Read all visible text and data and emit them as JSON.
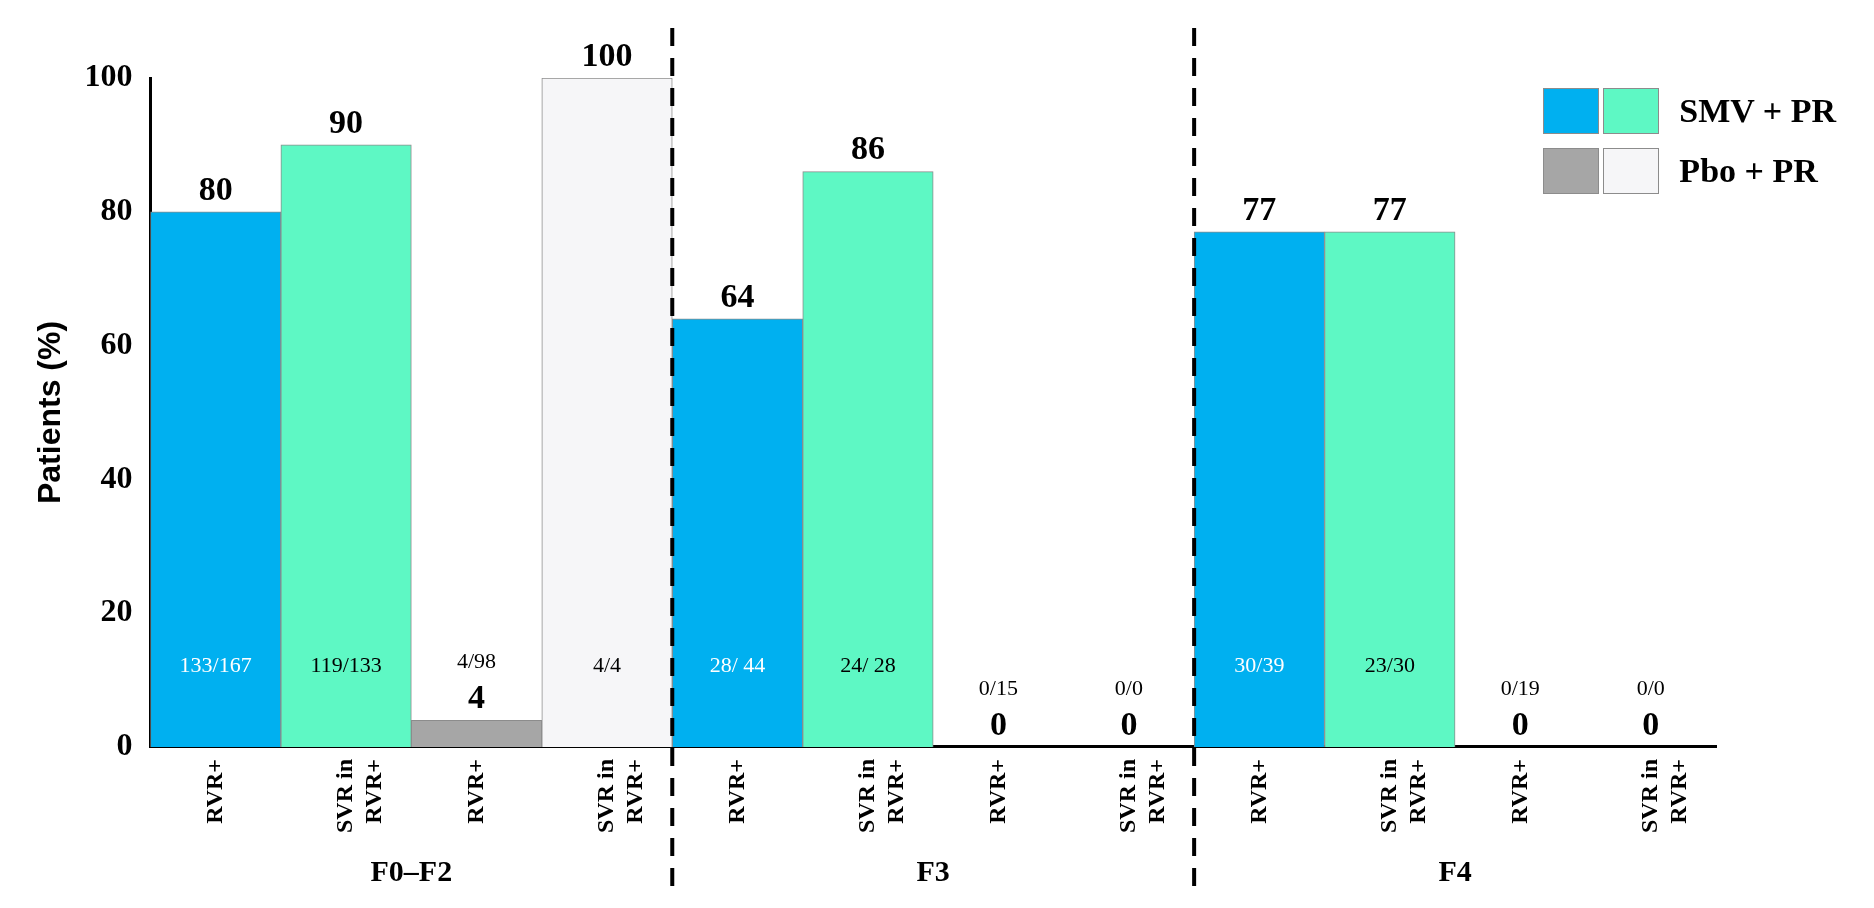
{
  "chart_data": {
    "type": "bar",
    "ylabel": "Patients (%)",
    "categories": [
      "RVR+",
      "SVR in RVR+",
      "RVR+",
      "SVR in RVR+",
      "RVR+",
      "SVR in RVR+",
      "RVR+",
      "SVR in RVR+",
      "RVR+",
      "SVR in RVR+",
      "RVR+",
      "SVR in RVR+"
    ],
    "series": [
      {
        "name": "SMV + PR",
        "colors": [
          "#00b0f0",
          "#5ef8c4",
          null,
          null,
          "#00b0f0",
          "#5ef8c4",
          null,
          null,
          "#00b0f0",
          "#5ef8c4",
          null,
          null
        ],
        "values": [
          80,
          90,
          null,
          null,
          64,
          86,
          null,
          null,
          77,
          77,
          null,
          null
        ],
        "value_labels": [
          "80",
          "90",
          null,
          null,
          "64",
          "86",
          null,
          null,
          "77",
          "77",
          null,
          null
        ]
      },
      {
        "name": "Pbo + PR",
        "colors": [
          null,
          null,
          "#a6a6a6",
          "#f6f6f8",
          null,
          null,
          "#a6a6a6",
          "#f6f6f8",
          null,
          null,
          "#a6a6a6",
          "#f6f6f8"
        ],
        "values": [
          null,
          null,
          4,
          100,
          null,
          null,
          0,
          0,
          null,
          null,
          0,
          0
        ],
        "value_labels": [
          null,
          null,
          "4",
          "100",
          null,
          null,
          "0",
          "0",
          null,
          null,
          "0",
          "0"
        ]
      }
    ],
    "annotations": [
      "F0–F2",
      "F3",
      "F4",
      "133/167",
      "119/133",
      "4/98",
      "4/4",
      "28/ 44",
      "24/ 28",
      "0/15",
      "0/0",
      "30/39",
      "23/30",
      "0/19",
      "0/0"
    ],
    "ylim": [
      0,
      100
    ],
    "yticks": [
      0,
      20,
      40,
      60,
      80,
      100
    ],
    "grid": false,
    "legend": "top right"
  }
}
